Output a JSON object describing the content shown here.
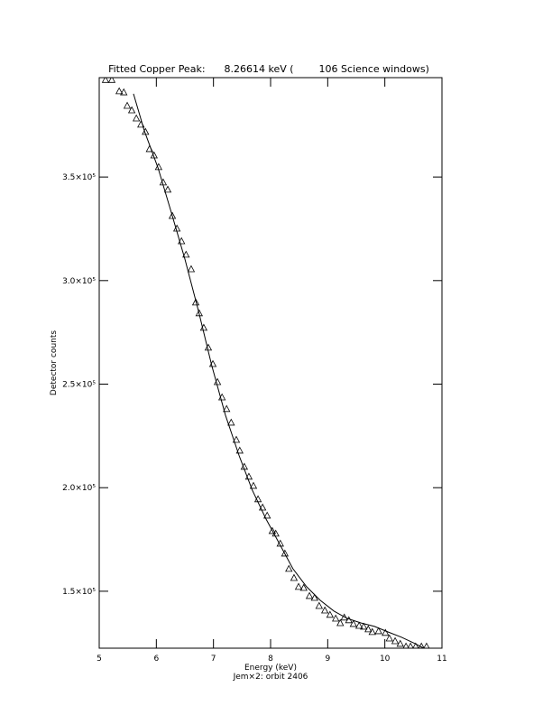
{
  "chart_data": {
    "type": "scatter",
    "title": "Fitted Copper Peak:      8.26614 keV (        106 Science windows)",
    "x_label": "Energy (keV)",
    "subtitle": "Jem×2: orbit 2406",
    "y_label": "Detector counts",
    "xlim": [
      5,
      11
    ],
    "xticks": [
      5,
      6,
      7,
      8,
      9,
      10,
      11
    ],
    "ylim": [
      122500,
      398000
    ],
    "yticks": [
      {
        "value": 150000,
        "label": "1.5×10⁵"
      },
      {
        "value": 200000,
        "label": "2.0×10⁵"
      },
      {
        "value": 250000,
        "label": "2.5×10⁵"
      },
      {
        "value": 300000,
        "label": "3.0×10⁵"
      },
      {
        "value": 350000,
        "label": "3.5×10⁵"
      }
    ],
    "grid": false,
    "series": [
      {
        "mode": "markers",
        "marker": "triangle",
        "color": "#000000",
        "x": [
          5.11,
          5.22,
          5.35,
          5.43,
          5.49,
          5.57,
          5.65,
          5.73,
          5.81,
          5.88,
          5.96,
          6.04,
          6.12,
          6.2,
          6.28,
          6.36,
          6.44,
          6.52,
          6.61,
          6.69,
          6.75,
          6.83,
          6.91,
          6.99,
          7.07,
          7.15,
          7.23,
          7.31,
          7.4,
          7.46,
          7.54,
          7.62,
          7.7,
          7.78,
          7.86,
          7.94,
          8.03,
          8.09,
          8.17,
          8.25,
          8.32,
          8.41,
          8.49,
          8.58,
          8.68,
          8.77,
          8.85,
          8.95,
          9.04,
          9.14,
          9.22,
          9.29,
          9.37,
          9.45,
          9.55,
          9.63,
          9.71,
          9.78,
          9.89,
          10.01,
          10.08,
          10.18,
          10.27,
          10.37,
          10.45,
          10.54,
          10.64,
          10.73
        ],
        "values": [
          397000,
          397000,
          391500,
          391000,
          384500,
          382300,
          378400,
          375400,
          371900,
          363600,
          360500,
          354900,
          347500,
          344000,
          331300,
          325200,
          319100,
          312600,
          305600,
          289500,
          284300,
          277300,
          267700,
          259800,
          251100,
          243700,
          238100,
          231500,
          223200,
          218000,
          210200,
          205400,
          201000,
          194500,
          190500,
          186600,
          179200,
          177900,
          173100,
          168300,
          160900,
          156500,
          152200,
          151700,
          147800,
          146900,
          143000,
          140800,
          138700,
          136900,
          134700,
          137400,
          136100,
          134300,
          133400,
          133000,
          131700,
          130400,
          130800,
          130000,
          127300,
          126000,
          124700,
          123400,
          123400,
          123400,
          123400,
          123400
        ]
      },
      {
        "mode": "line",
        "color": "#000000",
        "x": [
          5.6,
          5.79,
          6.03,
          6.26,
          6.5,
          6.74,
          6.97,
          7.21,
          7.45,
          7.68,
          7.92,
          8.16,
          8.39,
          8.63,
          8.87,
          9.11,
          9.34,
          9.58,
          9.82,
          10.05,
          10.29,
          10.53,
          10.68
        ],
        "values": [
          390200,
          372300,
          354400,
          333100,
          310400,
          285100,
          259000,
          235000,
          215400,
          198800,
          184900,
          172700,
          160900,
          152200,
          145600,
          140400,
          136900,
          134700,
          133000,
          130400,
          127800,
          124700,
          122500
        ]
      }
    ]
  }
}
